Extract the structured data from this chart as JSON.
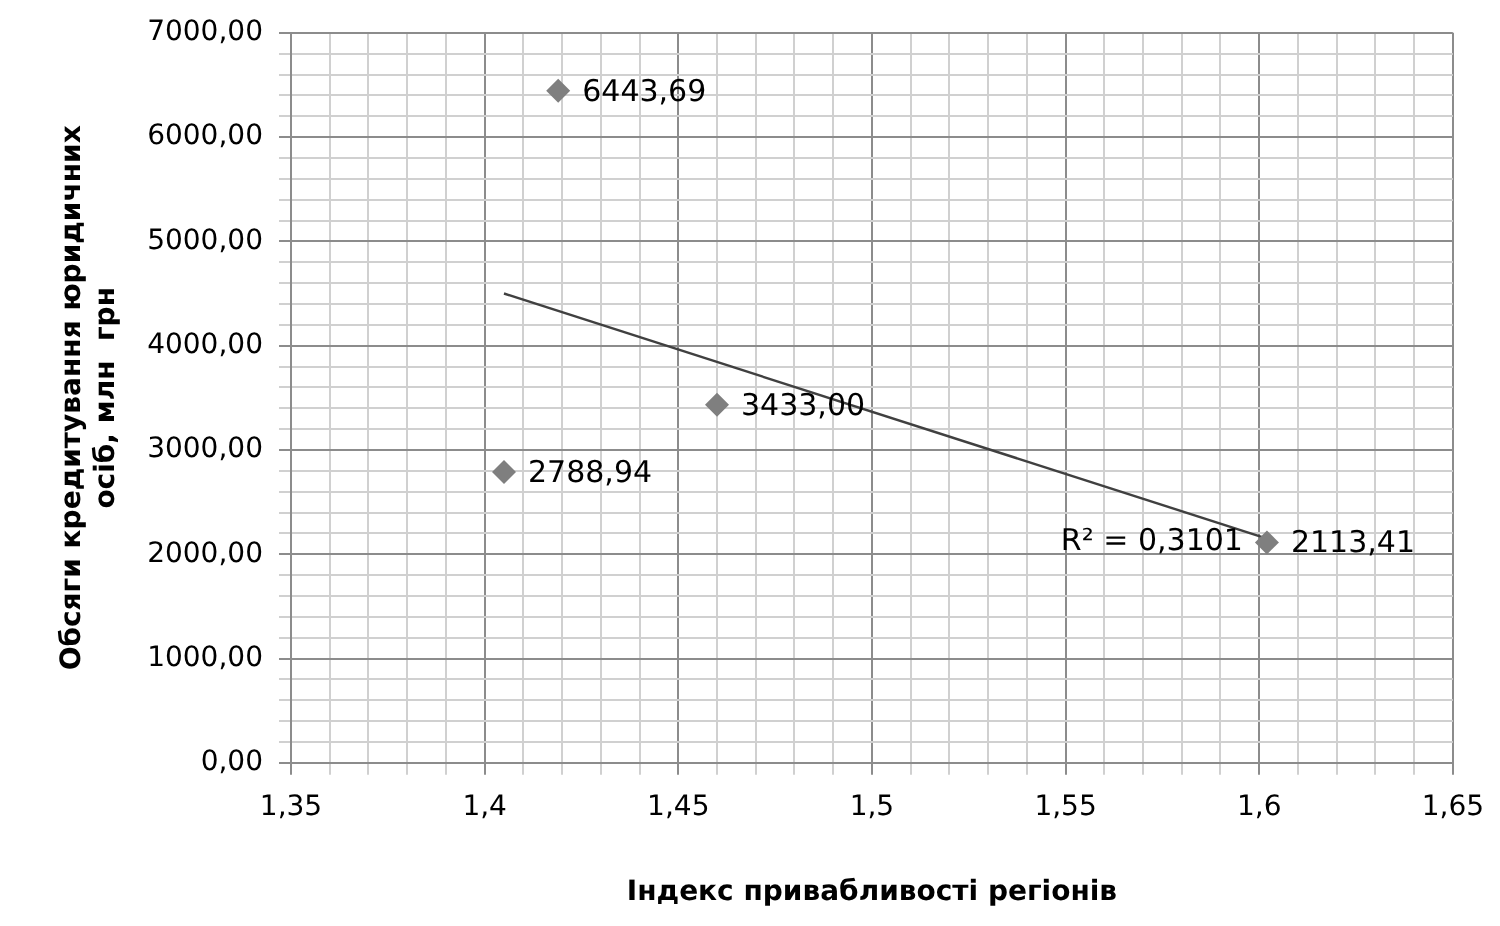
{
  "chart_data": {
    "type": "scatter",
    "xlabel": "Індекс привабливості регіонів",
    "ylabel": "Обсяги кредитування юридичних осіб, млн  грн",
    "series": [
      {
        "color": "#7f7f7f",
        "marker": "diamond",
        "x": [
          1.405,
          1.419,
          1.46,
          1.602
        ],
        "values": [
          2788.94,
          6443.69,
          3433.0,
          2113.41
        ],
        "value_labels": [
          "2788,94",
          "6443,69",
          "3433,00",
          "2113,41"
        ]
      },
      {
        "type": "line",
        "color": "#404040",
        "marker": "none",
        "x": [
          1.405,
          1.602
        ],
        "values": [
          4500,
          2150
        ]
      }
    ],
    "annotations": [
      "R² = 0,3101"
    ],
    "xlim": [
      1.35,
      1.65
    ],
    "xticks": [
      {
        "value": 1.35,
        "label": "1,35"
      },
      {
        "value": 1.36,
        "label": null
      },
      {
        "value": 1.37,
        "label": null
      },
      {
        "value": 1.38,
        "label": null
      },
      {
        "value": 1.39,
        "label": null
      },
      {
        "value": 1.4,
        "label": "1,4"
      },
      {
        "value": 1.41,
        "label": null
      },
      {
        "value": 1.42,
        "label": null
      },
      {
        "value": 1.43,
        "label": null
      },
      {
        "value": 1.44,
        "label": null
      },
      {
        "value": 1.45,
        "label": "1,45"
      },
      {
        "value": 1.46,
        "label": null
      },
      {
        "value": 1.47,
        "label": null
      },
      {
        "value": 1.48,
        "label": null
      },
      {
        "value": 1.49,
        "label": null
      },
      {
        "value": 1.5,
        "label": "1,5"
      },
      {
        "value": 1.51,
        "label": null
      },
      {
        "value": 1.52,
        "label": null
      },
      {
        "value": 1.53,
        "label": null
      },
      {
        "value": 1.54,
        "label": null
      },
      {
        "value": 1.55,
        "label": "1,55"
      },
      {
        "value": 1.56,
        "label": null
      },
      {
        "value": 1.57,
        "label": null
      },
      {
        "value": 1.58,
        "label": null
      },
      {
        "value": 1.59,
        "label": null
      },
      {
        "value": 1.6,
        "label": "1,6"
      },
      {
        "value": 1.61,
        "label": null
      },
      {
        "value": 1.62,
        "label": null
      },
      {
        "value": 1.63,
        "label": null
      },
      {
        "value": 1.64,
        "label": null
      },
      {
        "value": 1.65,
        "label": "1,65"
      }
    ],
    "ylim": [
      0,
      7000
    ],
    "yticks": [
      {
        "value": 0,
        "label": "0,00"
      },
      {
        "value": 200,
        "label": null
      },
      {
        "value": 400,
        "label": null
      },
      {
        "value": 600,
        "label": null
      },
      {
        "value": 800,
        "label": null
      },
      {
        "value": 1000,
        "label": "1000,00"
      },
      {
        "value": 1200,
        "label": null
      },
      {
        "value": 1400,
        "label": null
      },
      {
        "value": 1600,
        "label": null
      },
      {
        "value": 1800,
        "label": null
      },
      {
        "value": 2000,
        "label": "2000,00"
      },
      {
        "value": 2200,
        "label": null
      },
      {
        "value": 2400,
        "label": null
      },
      {
        "value": 2600,
        "label": null
      },
      {
        "value": 2800,
        "label": null
      },
      {
        "value": 3000,
        "label": "3000,00"
      },
      {
        "value": 3200,
        "label": null
      },
      {
        "value": 3400,
        "label": null
      },
      {
        "value": 3600,
        "label": null
      },
      {
        "value": 3800,
        "label": null
      },
      {
        "value": 4000,
        "label": "4000,00"
      },
      {
        "value": 4200,
        "label": null
      },
      {
        "value": 4400,
        "label": null
      },
      {
        "value": 4600,
        "label": null
      },
      {
        "value": 4800,
        "label": null
      },
      {
        "value": 5000,
        "label": "5000,00"
      },
      {
        "value": 5200,
        "label": null
      },
      {
        "value": 5400,
        "label": null
      },
      {
        "value": 5600,
        "label": null
      },
      {
        "value": 5800,
        "label": null
      },
      {
        "value": 6000,
        "label": "6000,00"
      },
      {
        "value": 6200,
        "label": null
      },
      {
        "value": 6400,
        "label": null
      },
      {
        "value": 6600,
        "label": null
      },
      {
        "value": 6800,
        "label": null
      },
      {
        "value": 7000,
        "label": "7000,00"
      }
    ],
    "grid": true,
    "legend": false
  }
}
